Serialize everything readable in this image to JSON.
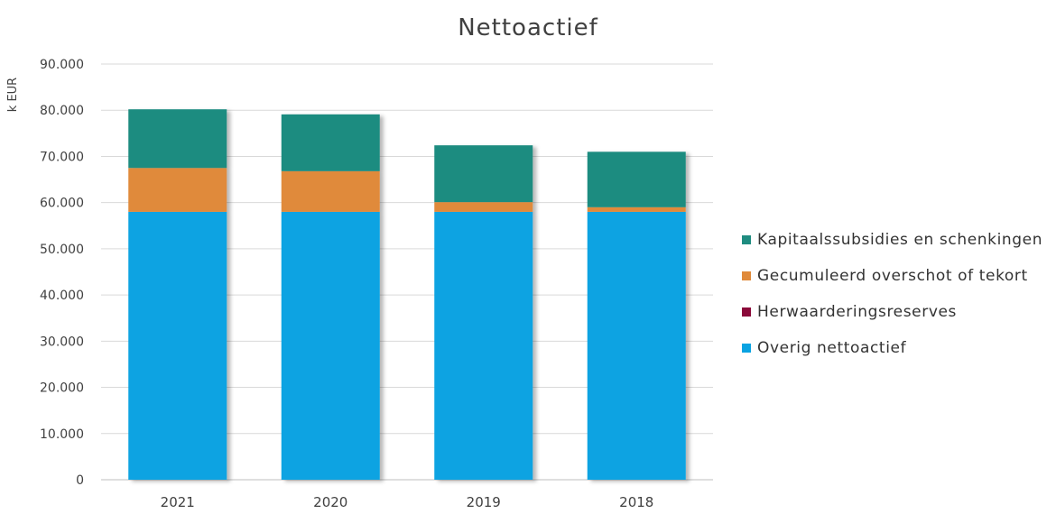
{
  "chart_data": {
    "type": "bar",
    "stacked": true,
    "title": "Nettoactief",
    "ylabel": "k EUR",
    "xlabel": "",
    "categories": [
      "2021",
      "2020",
      "2019",
      "2018"
    ],
    "ylim": [
      0,
      90000
    ],
    "yticks": [
      0,
      10000,
      20000,
      30000,
      40000,
      50000,
      60000,
      70000,
      80000,
      90000
    ],
    "ytick_labels": [
      "0",
      "10.000",
      "20.000",
      "30.000",
      "40.000",
      "50.000",
      "60.000",
      "70.000",
      "80.000",
      "90.000"
    ],
    "grid": true,
    "legend_position": "right",
    "series": [
      {
        "name": "Overig nettoactief",
        "color": "#0aa3e2",
        "values": [
          58000,
          58000,
          58000,
          58000
        ]
      },
      {
        "name": "Herwaarderingsreserves",
        "color": "#8b0a3a",
        "values": [
          0,
          0,
          0,
          0
        ]
      },
      {
        "name": "Gecumuleerd overschot of tekort",
        "color": "#e08a3a",
        "values": [
          9500,
          8800,
          2100,
          1000
        ]
      },
      {
        "name": "Kapitaalssubsidies en schenkingen",
        "color": "#1f8c80",
        "values": [
          12700,
          12300,
          12300,
          12000
        ]
      }
    ],
    "legend_order": [
      "Kapitaalssubsidies en schenkingen",
      "Gecumuleerd overschot of tekort",
      "Herwaarderingsreserves",
      "Overig nettoactief"
    ]
  }
}
